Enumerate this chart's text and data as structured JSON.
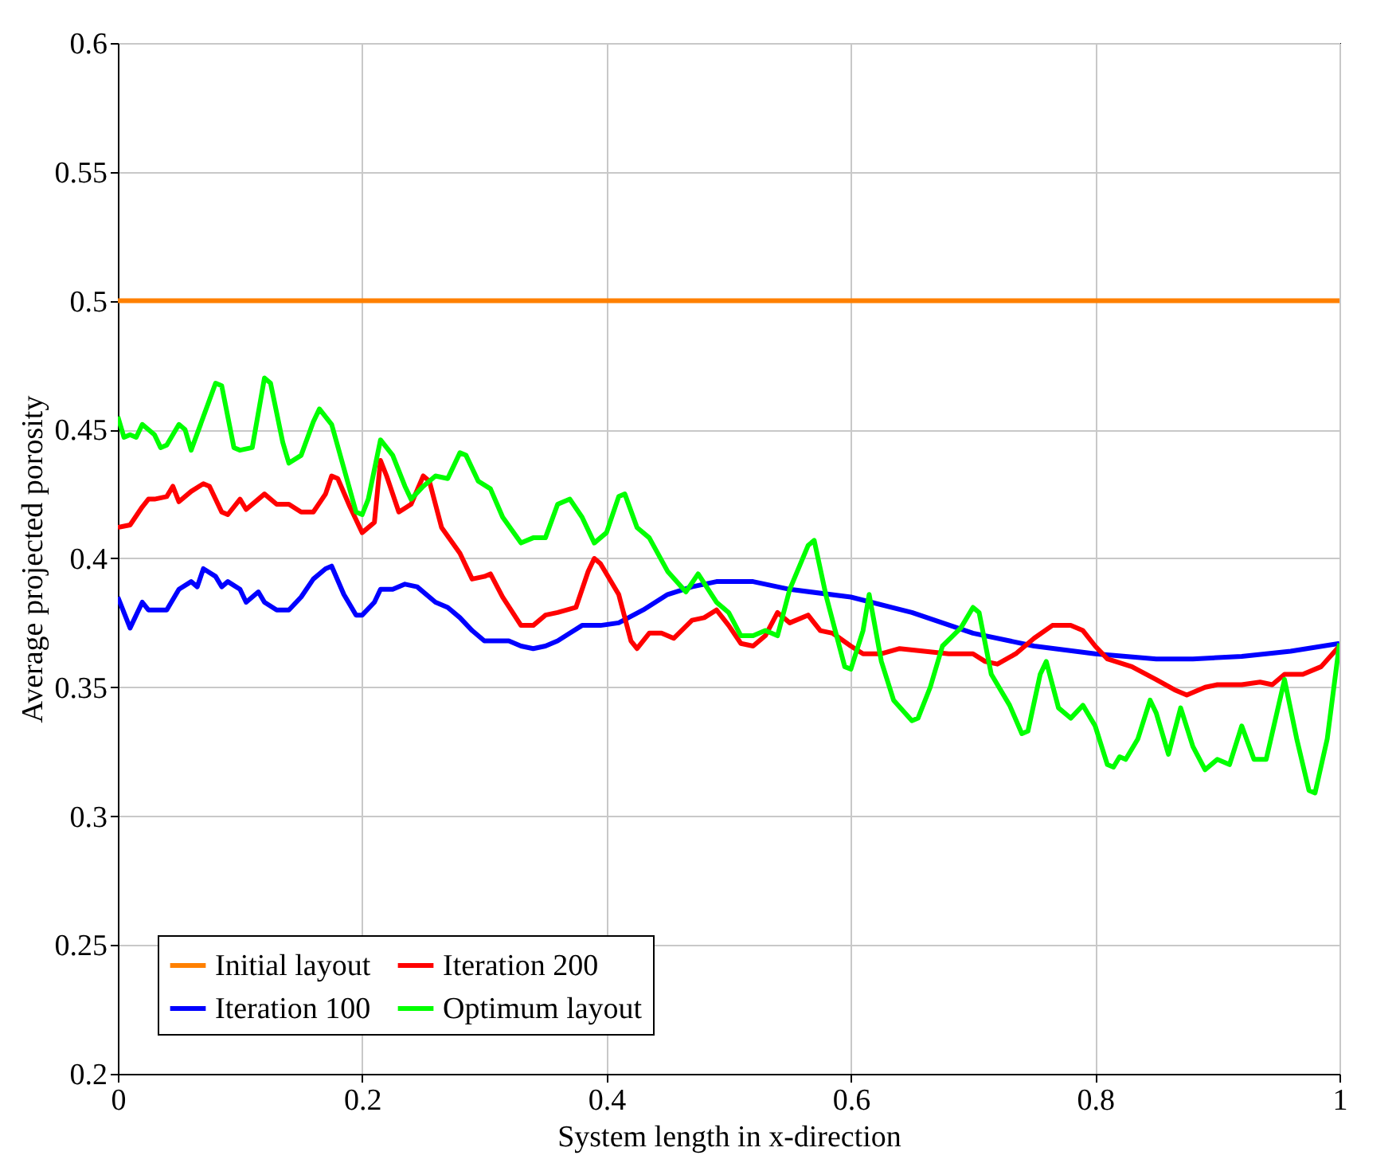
{
  "chart_data": {
    "type": "line",
    "xlabel": "System length in x-direction",
    "ylabel": "Average projected porosity",
    "xlim": [
      0,
      1
    ],
    "ylim": [
      0.2,
      0.6
    ],
    "xticks": [
      0,
      0.2,
      0.4,
      0.6,
      0.8,
      1
    ],
    "yticks": [
      0.2,
      0.25,
      0.3,
      0.35,
      0.4,
      0.45,
      0.5,
      0.55,
      0.6
    ],
    "grid": true,
    "legend": "bottom left",
    "line_style": "solid",
    "marker": "none",
    "series": [
      {
        "name": "Initial layout",
        "color": "#ff8000",
        "x": [
          0,
          1
        ],
        "values": [
          0.5,
          0.5
        ]
      },
      {
        "name": "Iteration 100",
        "color": "#0000ff",
        "x": [
          0,
          0.01,
          0.02,
          0.025,
          0.035,
          0.04,
          0.05,
          0.06,
          0.065,
          0.07,
          0.08,
          0.085,
          0.09,
          0.1,
          0.105,
          0.115,
          0.12,
          0.13,
          0.14,
          0.15,
          0.16,
          0.17,
          0.175,
          0.185,
          0.195,
          0.2,
          0.21,
          0.215,
          0.225,
          0.235,
          0.245,
          0.26,
          0.27,
          0.28,
          0.29,
          0.3,
          0.31,
          0.32,
          0.33,
          0.34,
          0.35,
          0.36,
          0.37,
          0.38,
          0.395,
          0.41,
          0.43,
          0.45,
          0.47,
          0.49,
          0.52,
          0.55,
          0.6,
          0.65,
          0.7,
          0.75,
          0.8,
          0.85,
          0.88,
          0.92,
          0.96,
          1
        ],
        "values": [
          0.385,
          0.373,
          0.383,
          0.38,
          0.38,
          0.38,
          0.388,
          0.391,
          0.389,
          0.396,
          0.393,
          0.389,
          0.391,
          0.388,
          0.383,
          0.387,
          0.383,
          0.38,
          0.38,
          0.385,
          0.392,
          0.396,
          0.397,
          0.386,
          0.378,
          0.378,
          0.383,
          0.388,
          0.388,
          0.39,
          0.389,
          0.383,
          0.381,
          0.377,
          0.372,
          0.368,
          0.368,
          0.368,
          0.366,
          0.365,
          0.366,
          0.368,
          0.371,
          0.374,
          0.374,
          0.375,
          0.38,
          0.386,
          0.389,
          0.391,
          0.391,
          0.388,
          0.385,
          0.379,
          0.371,
          0.366,
          0.363,
          0.361,
          0.361,
          0.362,
          0.364,
          0.367
        ]
      },
      {
        "name": "Iteration 200",
        "color": "#ff0000",
        "x": [
          0,
          0.01,
          0.02,
          0.025,
          0.03,
          0.04,
          0.045,
          0.05,
          0.06,
          0.07,
          0.075,
          0.085,
          0.09,
          0.1,
          0.105,
          0.115,
          0.12,
          0.13,
          0.14,
          0.15,
          0.16,
          0.17,
          0.175,
          0.18,
          0.19,
          0.2,
          0.21,
          0.215,
          0.22,
          0.23,
          0.24,
          0.25,
          0.255,
          0.265,
          0.28,
          0.29,
          0.3,
          0.305,
          0.315,
          0.33,
          0.34,
          0.35,
          0.36,
          0.375,
          0.385,
          0.39,
          0.395,
          0.41,
          0.42,
          0.425,
          0.435,
          0.445,
          0.455,
          0.47,
          0.48,
          0.49,
          0.5,
          0.51,
          0.52,
          0.53,
          0.54,
          0.55,
          0.565,
          0.575,
          0.585,
          0.6,
          0.61,
          0.625,
          0.64,
          0.66,
          0.68,
          0.7,
          0.71,
          0.72,
          0.735,
          0.75,
          0.765,
          0.78,
          0.79,
          0.8,
          0.81,
          0.83,
          0.85,
          0.865,
          0.875,
          0.89,
          0.9,
          0.92,
          0.935,
          0.945,
          0.955,
          0.97,
          0.985,
          1
        ],
        "values": [
          0.412,
          0.413,
          0.42,
          0.423,
          0.423,
          0.424,
          0.428,
          0.422,
          0.426,
          0.429,
          0.428,
          0.418,
          0.417,
          0.423,
          0.419,
          0.423,
          0.425,
          0.421,
          0.421,
          0.418,
          0.418,
          0.425,
          0.432,
          0.431,
          0.42,
          0.41,
          0.414,
          0.438,
          0.432,
          0.418,
          0.421,
          0.432,
          0.43,
          0.412,
          0.402,
          0.392,
          0.393,
          0.394,
          0.385,
          0.374,
          0.374,
          0.378,
          0.379,
          0.381,
          0.395,
          0.4,
          0.398,
          0.386,
          0.368,
          0.365,
          0.371,
          0.371,
          0.369,
          0.376,
          0.377,
          0.38,
          0.374,
          0.367,
          0.366,
          0.37,
          0.379,
          0.375,
          0.378,
          0.372,
          0.371,
          0.366,
          0.363,
          0.363,
          0.365,
          0.364,
          0.363,
          0.363,
          0.36,
          0.359,
          0.363,
          0.369,
          0.374,
          0.374,
          0.372,
          0.366,
          0.361,
          0.358,
          0.353,
          0.349,
          0.347,
          0.35,
          0.351,
          0.351,
          0.352,
          0.351,
          0.355,
          0.355,
          0.358,
          0.366
        ]
      },
      {
        "name": "Optimum layout",
        "color": "#00ff00",
        "x": [
          0,
          0.005,
          0.01,
          0.015,
          0.02,
          0.03,
          0.035,
          0.04,
          0.05,
          0.055,
          0.06,
          0.07,
          0.08,
          0.085,
          0.095,
          0.1,
          0.11,
          0.12,
          0.125,
          0.135,
          0.14,
          0.15,
          0.16,
          0.165,
          0.175,
          0.185,
          0.195,
          0.2,
          0.205,
          0.215,
          0.225,
          0.235,
          0.24,
          0.25,
          0.26,
          0.27,
          0.28,
          0.285,
          0.295,
          0.305,
          0.315,
          0.33,
          0.34,
          0.35,
          0.36,
          0.37,
          0.38,
          0.39,
          0.4,
          0.41,
          0.415,
          0.425,
          0.435,
          0.45,
          0.465,
          0.475,
          0.49,
          0.5,
          0.51,
          0.52,
          0.53,
          0.54,
          0.55,
          0.565,
          0.57,
          0.58,
          0.595,
          0.6,
          0.61,
          0.615,
          0.625,
          0.635,
          0.65,
          0.655,
          0.665,
          0.675,
          0.69,
          0.7,
          0.705,
          0.715,
          0.73,
          0.74,
          0.745,
          0.755,
          0.76,
          0.77,
          0.78,
          0.79,
          0.8,
          0.81,
          0.815,
          0.82,
          0.825,
          0.835,
          0.845,
          0.85,
          0.86,
          0.87,
          0.88,
          0.89,
          0.9,
          0.91,
          0.92,
          0.93,
          0.94,
          0.955,
          0.965,
          0.975,
          0.98,
          0.99,
          1
        ],
        "values": [
          0.455,
          0.447,
          0.448,
          0.447,
          0.452,
          0.448,
          0.443,
          0.444,
          0.452,
          0.45,
          0.442,
          0.455,
          0.468,
          0.467,
          0.443,
          0.442,
          0.443,
          0.47,
          0.468,
          0.445,
          0.437,
          0.44,
          0.453,
          0.458,
          0.452,
          0.435,
          0.418,
          0.417,
          0.423,
          0.446,
          0.44,
          0.428,
          0.423,
          0.428,
          0.432,
          0.431,
          0.441,
          0.44,
          0.43,
          0.427,
          0.416,
          0.406,
          0.408,
          0.408,
          0.421,
          0.423,
          0.416,
          0.406,
          0.41,
          0.424,
          0.425,
          0.412,
          0.408,
          0.395,
          0.387,
          0.394,
          0.383,
          0.379,
          0.37,
          0.37,
          0.372,
          0.37,
          0.388,
          0.405,
          0.407,
          0.385,
          0.358,
          0.357,
          0.372,
          0.386,
          0.36,
          0.345,
          0.337,
          0.338,
          0.35,
          0.366,
          0.373,
          0.381,
          0.379,
          0.355,
          0.343,
          0.332,
          0.333,
          0.355,
          0.36,
          0.342,
          0.338,
          0.343,
          0.335,
          0.32,
          0.319,
          0.323,
          0.322,
          0.33,
          0.345,
          0.34,
          0.324,
          0.342,
          0.327,
          0.318,
          0.322,
          0.32,
          0.335,
          0.322,
          0.322,
          0.353,
          0.33,
          0.31,
          0.309,
          0.33,
          0.367
        ]
      }
    ]
  }
}
